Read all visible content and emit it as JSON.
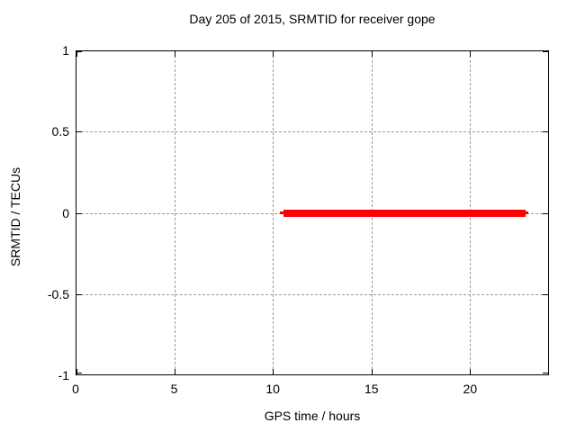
{
  "chart_data": {
    "type": "line",
    "title": "Day 205 of 2015, SRMTID for receiver gope",
    "xlabel": "GPS time / hours",
    "ylabel": "SRMTID / TECUs",
    "xlim": [
      0,
      24
    ],
    "ylim": [
      -1,
      1
    ],
    "xticks": [
      [
        0,
        "0"
      ],
      [
        5,
        "5"
      ],
      [
        10,
        "10"
      ],
      [
        15,
        "15"
      ],
      [
        20,
        "20"
      ]
    ],
    "yticks": [
      [
        -1,
        "-1"
      ],
      [
        -0.5,
        "-0.5"
      ],
      [
        0,
        "0"
      ],
      [
        0.5,
        "0.5"
      ],
      [
        1,
        "1"
      ]
    ],
    "grid": true,
    "grid_color": "#999999",
    "border_color": "#000000",
    "background": "#ffffff",
    "legend": "none",
    "series": [
      {
        "name": "SRMTID",
        "color": "#ff0000",
        "y_value": 0,
        "x_start": 10.3,
        "x_end": 22.9,
        "description": "constant 0 TECUs from about 10.3 to 22.9 GPS hours",
        "segments": [
          {
            "x_start": 10.3,
            "x_end": 22.9,
            "y": 0,
            "px_thickness": 3
          },
          {
            "x_start": 10.5,
            "x_end": 22.75,
            "y": 0,
            "px_thickness": 8
          }
        ]
      }
    ]
  }
}
